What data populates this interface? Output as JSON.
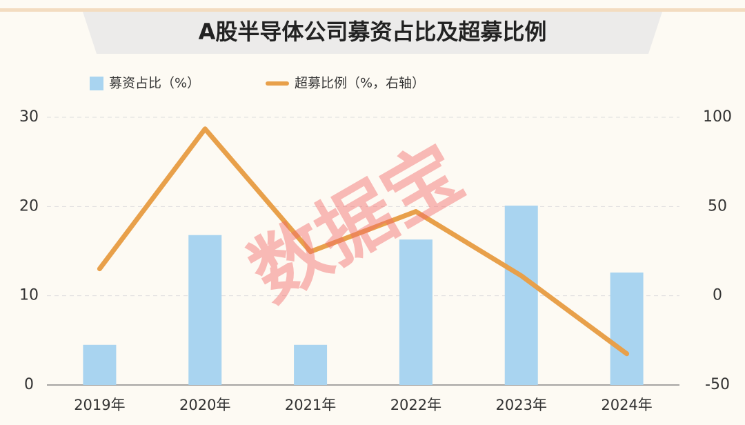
{
  "chart_data": {
    "type": "bar",
    "title": "A股半导体公司募资占比及超募比例",
    "watermark": "数据宝",
    "categories": [
      "2019年",
      "2020年",
      "2021年",
      "2022年",
      "2023年",
      "2024年"
    ],
    "series": [
      {
        "name": "募资占比（%）",
        "type": "bar",
        "color": "#a9d4f0",
        "values": [
          4.5,
          16.8,
          4.5,
          16.3,
          20.1,
          12.6
        ]
      },
      {
        "name": "超募比例（%，右轴）",
        "type": "line",
        "axis": "y2",
        "color": "#e8a04a",
        "values": [
          15.1,
          93.5,
          24.7,
          47.2,
          11.2,
          -32.5
        ]
      }
    ],
    "ylim": [
      0,
      30
    ],
    "yticks": [
      0,
      10,
      20,
      30
    ],
    "y2lim": [
      -50,
      100
    ],
    "y2ticks": [
      -50,
      0,
      50,
      100
    ],
    "grid": true,
    "legend": "top"
  }
}
